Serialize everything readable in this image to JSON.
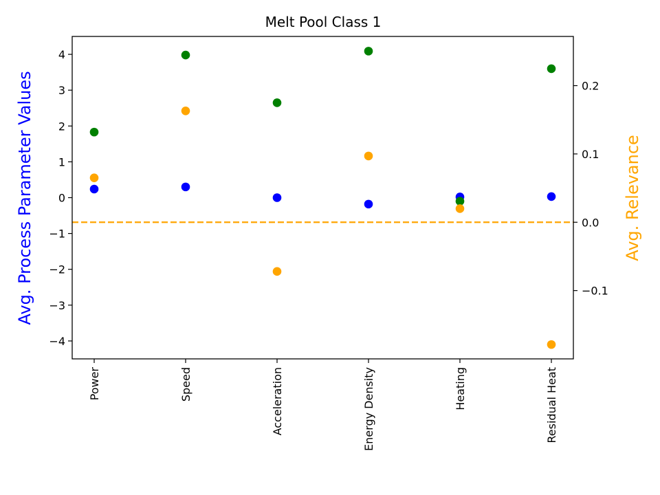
{
  "chart_data": {
    "type": "scatter",
    "title": "Melt Pool Class 1",
    "categories": [
      "Power",
      "Speed",
      "Acceleration",
      "Energy Density",
      "Heating",
      "Residual Heat"
    ],
    "y_left": {
      "label": "Avg. Process Parameter Values",
      "label_color": "#0000ff",
      "lim": [
        -4.5,
        4.5
      ],
      "ticks": [
        -4,
        -3,
        -2,
        -1,
        0,
        1,
        2,
        3,
        4
      ],
      "tick_labels": [
        "−4",
        "−3",
        "−2",
        "−1",
        "0",
        "1",
        "2",
        "3",
        "4"
      ]
    },
    "y_right": {
      "label": "Avg. Relevance",
      "label_color": "#ffa500",
      "lim": [
        -0.2,
        0.272
      ],
      "ticks": [
        -0.1,
        0.0,
        0.1,
        0.2
      ],
      "tick_labels": [
        "−0.1",
        "0.0",
        "0.1",
        "0.2"
      ]
    },
    "reference_line": {
      "axis": "right",
      "value": 0.0,
      "color": "#ffa500",
      "style": "dashed"
    },
    "series": [
      {
        "axis": "left",
        "color": "#0000ff",
        "values": [
          0.24,
          0.3,
          0.0,
          -0.18,
          0.02,
          0.03
        ]
      },
      {
        "axis": "left",
        "color": "#008000",
        "values": [
          1.83,
          3.98,
          2.65,
          4.09,
          -0.1,
          3.6
        ]
      },
      {
        "axis": "right",
        "color": "#ffa500",
        "values": [
          0.065,
          0.163,
          -0.072,
          0.097,
          0.02,
          -0.179
        ]
      }
    ]
  }
}
